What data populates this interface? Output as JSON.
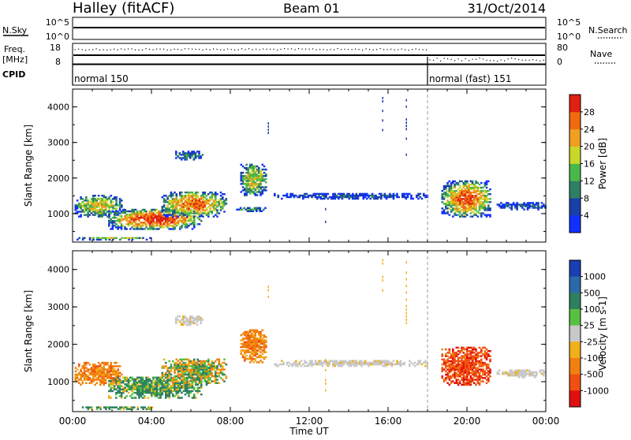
{
  "header": {
    "station": "Halley (fitACF)",
    "beam": "Beam 01",
    "date": "31/Oct/2014"
  },
  "top_panels": {
    "nsky_label": "N.Sky",
    "nsearch_label": "N.Search",
    "nsky_ticks": [
      "10^5",
      "10^0"
    ],
    "nsearch_ticks": [
      "10^5",
      "10^0"
    ],
    "freq_label": "Freq.",
    "freq_unit": "[MHz]",
    "freq_ticks": [
      "18",
      "8"
    ],
    "nave_label": "Nave",
    "nave_ticks": [
      "80",
      "0"
    ],
    "cpid_label": "CPID",
    "cpid_modes": [
      {
        "label": "normal 150",
        "start_hour": 0
      },
      {
        "label": "normal (fast) 151",
        "start_hour": 18
      }
    ]
  },
  "chart_data": [
    {
      "type": "heatmap",
      "panel": "power",
      "ylabel": "Slant Range [km]",
      "ylim": [
        200,
        4500
      ],
      "yticks": [
        1000,
        2000,
        3000,
        4000
      ],
      "xlim": [
        0,
        24
      ],
      "colorbar": {
        "label": "Power [dB]",
        "ticks": [
          "4",
          "8",
          "12",
          "16",
          "20",
          "24",
          "28"
        ],
        "colors": [
          "#1030ff",
          "#1a3fa8",
          "#2f7f66",
          "#49b84a",
          "#c8d828",
          "#f0a020",
          "#f06a10",
          "#e02010"
        ]
      },
      "echo_regions": [
        {
          "t0": 0.1,
          "t1": 2.5,
          "r0": 900,
          "r1": 1500,
          "intensity": 0.55
        },
        {
          "t0": 1.8,
          "t1": 6.5,
          "r0": 550,
          "r1": 1100,
          "intensity": 0.85
        },
        {
          "t0": 4.5,
          "t1": 7.8,
          "r0": 900,
          "r1": 1600,
          "intensity": 0.7
        },
        {
          "t0": 8.5,
          "t1": 9.8,
          "r0": 1500,
          "r1": 2400,
          "intensity": 0.55
        },
        {
          "t0": 8.2,
          "t1": 9.8,
          "r0": 1050,
          "r1": 1150,
          "intensity": 0.35
        },
        {
          "t0": 5.2,
          "t1": 6.6,
          "r0": 2500,
          "r1": 2750,
          "intensity": 0.3
        },
        {
          "t0": 10.2,
          "t1": 18.0,
          "r0": 1400,
          "r1": 1550,
          "intensity": 0.2
        },
        {
          "t0": 18.7,
          "t1": 21.2,
          "r0": 900,
          "r1": 1900,
          "intensity": 0.75
        },
        {
          "t0": 21.5,
          "t1": 24.0,
          "r0": 1100,
          "r1": 1300,
          "intensity": 0.2
        },
        {
          "t0": 0.2,
          "t1": 4.0,
          "r0": 250,
          "r1": 330,
          "intensity": 0.5
        }
      ]
    },
    {
      "type": "heatmap",
      "panel": "velocity",
      "ylabel": "Slant Range [km]",
      "xlabel": "Time UT",
      "ylim": [
        200,
        4500
      ],
      "yticks": [
        1000,
        2000,
        3000,
        4000
      ],
      "xlim": [
        0,
        24
      ],
      "xticks": [
        "00:00",
        "04:00",
        "08:00",
        "12:00",
        "16:00",
        "20:00",
        "00:00"
      ],
      "colorbar": {
        "label": "Velocity [m s-1]",
        "ticks": [
          "1000",
          "500",
          "100",
          "25",
          "-25",
          "-100",
          "-500",
          "-1000"
        ],
        "colors": [
          "#1a3fb0",
          "#2a6aa8",
          "#2f8060",
          "#58c040",
          "#c8c8c8",
          "#f0b018",
          "#f08010",
          "#f05010",
          "#e01010"
        ]
      },
      "echo_regions": [
        {
          "t0": 0.1,
          "t1": 2.5,
          "r0": 900,
          "r1": 1500,
          "class": "orange"
        },
        {
          "t0": 1.8,
          "t1": 6.5,
          "r0": 550,
          "r1": 1100,
          "class": "green"
        },
        {
          "t0": 4.5,
          "t1": 7.8,
          "r0": 900,
          "r1": 1600,
          "class": "mixed"
        },
        {
          "t0": 8.5,
          "t1": 9.8,
          "r0": 1500,
          "r1": 2400,
          "class": "orange"
        },
        {
          "t0": 5.2,
          "t1": 6.6,
          "r0": 2500,
          "r1": 2750,
          "class": "grey"
        },
        {
          "t0": 10.2,
          "t1": 18.0,
          "r0": 1400,
          "r1": 1550,
          "class": "grey"
        },
        {
          "t0": 18.7,
          "t1": 21.2,
          "r0": 900,
          "r1": 1900,
          "class": "red"
        },
        {
          "t0": 21.5,
          "t1": 24.0,
          "r0": 1100,
          "r1": 1300,
          "class": "grey"
        },
        {
          "t0": 0.2,
          "t1": 4.0,
          "r0": 250,
          "r1": 330,
          "class": "green"
        }
      ]
    }
  ]
}
